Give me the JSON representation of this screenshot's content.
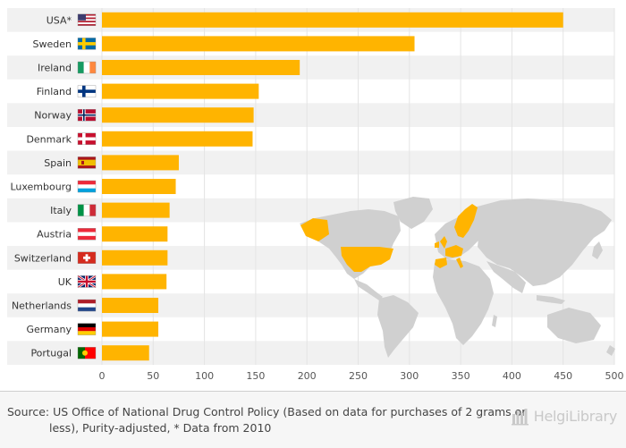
{
  "chart_data": {
    "type": "bar",
    "orientation": "horizontal",
    "categories": [
      "USA*",
      "Sweden",
      "Ireland",
      "Finland",
      "Norway",
      "Denmark",
      "Spain",
      "Luxembourg",
      "Italy",
      "Austria",
      "Switzerland",
      "UK",
      "Netherlands",
      "Germany",
      "Portugal"
    ],
    "values": [
      450,
      305,
      193,
      153,
      148,
      147,
      75,
      72,
      66,
      64,
      64,
      63,
      55,
      55,
      46
    ],
    "xlim": [
      0,
      500
    ],
    "xticks": [
      0,
      50,
      100,
      150,
      200,
      250,
      300,
      350,
      400,
      450,
      500
    ],
    "title": "",
    "xlabel": "",
    "ylabel": "",
    "grid": true,
    "bar_color": "#FFB400",
    "highlighted_countries_on_map": [
      "USA*",
      "Sweden",
      "Ireland",
      "Finland",
      "Norway",
      "Denmark",
      "Spain",
      "Luxembourg",
      "Italy",
      "Austria",
      "Switzerland",
      "UK",
      "Netherlands",
      "Germany",
      "Portugal"
    ],
    "map_land_color": "#d0d0d0"
  },
  "footer": {
    "source": "Source: US Office of National Drug Control Policy (Based on data for purchases of 2 grams or less), Purity-adjusted, * Data from 2010",
    "brand": "HelgiLibrary"
  },
  "icons": [
    "flag-usa-icon",
    "flag-sweden-icon",
    "flag-ireland-icon",
    "flag-finland-icon",
    "flag-norway-icon",
    "flag-denmark-icon",
    "flag-spain-icon",
    "flag-luxembourg-icon",
    "flag-italy-icon",
    "flag-austria-icon",
    "flag-switzerland-icon",
    "flag-uk-icon",
    "flag-netherlands-icon",
    "flag-germany-icon",
    "flag-portugal-icon",
    "world-map-icon",
    "helgilibrary-logo-icon"
  ]
}
